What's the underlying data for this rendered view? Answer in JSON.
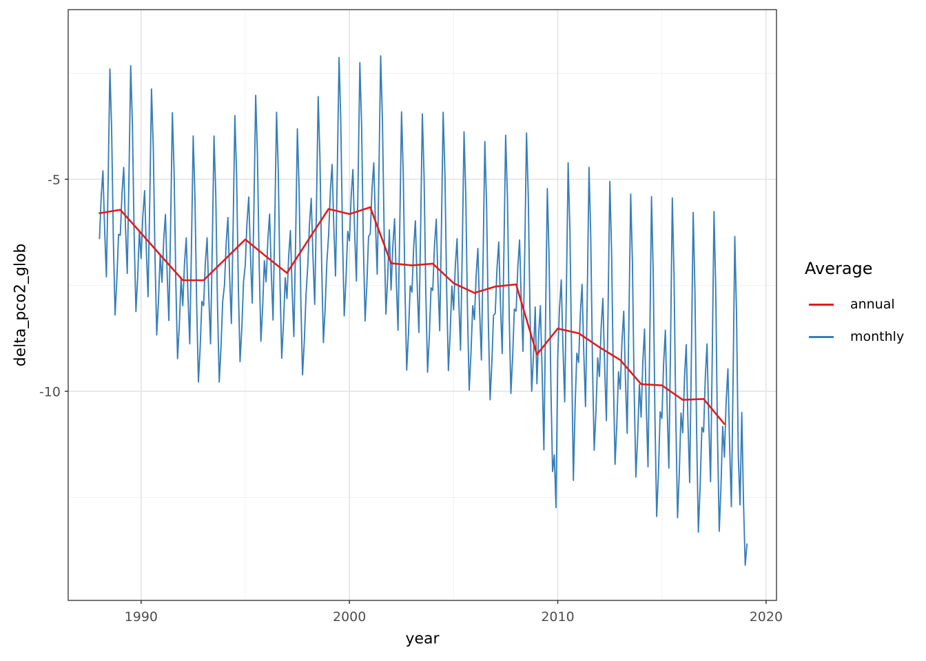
{
  "axes": {
    "x_title": "year",
    "y_title": "delta_pco2_glob"
  },
  "chart_data": {
    "type": "line",
    "title": "",
    "xlabel": "year",
    "ylabel": "delta_pco2_glob",
    "x_domain": [
      1986.5,
      2020.5
    ],
    "y_domain": [
      -14.93,
      -1.0
    ],
    "grid": "major+minor",
    "x_ticks": {
      "major": [
        1990,
        2000,
        2010,
        2020
      ],
      "labels": [
        "1990",
        "2000",
        "2010",
        "2020"
      ],
      "minor": [
        1995,
        2005,
        2015
      ]
    },
    "y_ticks": {
      "major": [
        -5,
        -10
      ],
      "labels": [
        "-5",
        "-10"
      ],
      "minor": [
        -2.5,
        -7.5,
        -12.5
      ]
    },
    "legend": {
      "title": "Average",
      "position": "right",
      "entries": [
        {
          "label": "annual",
          "color": "#E41A1C"
        },
        {
          "label": "monthly",
          "color": "#377EB8"
        }
      ]
    },
    "series": [
      {
        "name": "annual",
        "color": "#E41A1C",
        "stroke_width": 2.6,
        "x_start": 1988,
        "x_step": 1,
        "values": [
          -5.8,
          -5.72,
          -6.27,
          -6.83,
          -7.38,
          -7.38,
          -6.9,
          -6.42,
          -6.82,
          -7.21,
          -6.45,
          -5.7,
          -5.82,
          -5.66,
          -6.98,
          -7.03,
          -6.99,
          -7.45,
          -7.68,
          -7.53,
          -7.48,
          -9.13,
          -8.52,
          -8.63,
          -8.96,
          -9.26,
          -9.83,
          -9.86,
          -10.2,
          -10.18,
          -10.77
        ]
      },
      {
        "name": "monthly",
        "color": "#377EB8",
        "stroke_width": 1.9,
        "x_start": 1988,
        "x_step": 0.0833333,
        "values": [
          -6.4,
          -5.4,
          -4.8,
          -6.2,
          -7.3,
          -5.0,
          -2.4,
          -3.8,
          -6.4,
          -8.2,
          -7.4,
          -6.3,
          -6.32,
          -5.32,
          -4.72,
          -6.12,
          -7.22,
          -4.92,
          -2.32,
          -3.72,
          -6.32,
          -8.12,
          -7.32,
          -6.22,
          -6.87,
          -5.87,
          -5.27,
          -6.67,
          -7.77,
          -5.47,
          -2.87,
          -4.27,
          -6.87,
          -8.67,
          -7.87,
          -6.77,
          -7.43,
          -6.43,
          -5.83,
          -7.23,
          -8.33,
          -6.03,
          -3.43,
          -4.83,
          -7.43,
          -9.23,
          -8.43,
          -7.33,
          -7.98,
          -6.98,
          -6.38,
          -7.78,
          -8.88,
          -6.58,
          -3.98,
          -5.38,
          -7.98,
          -9.78,
          -8.98,
          -7.88,
          -7.98,
          -6.98,
          -6.38,
          -7.78,
          -8.88,
          -6.58,
          -3.98,
          -5.38,
          -7.98,
          -9.78,
          -8.98,
          -7.88,
          -7.5,
          -6.5,
          -5.9,
          -7.3,
          -8.4,
          -6.1,
          -3.5,
          -4.9,
          -7.5,
          -9.3,
          -8.5,
          -7.4,
          -7.02,
          -6.02,
          -5.42,
          -6.82,
          -7.92,
          -5.62,
          -3.02,
          -4.42,
          -7.02,
          -8.82,
          -8.02,
          -6.92,
          -7.42,
          -6.42,
          -5.82,
          -7.22,
          -8.32,
          -6.02,
          -3.42,
          -4.82,
          -7.42,
          -9.22,
          -8.42,
          -7.32,
          -7.81,
          -6.81,
          -6.21,
          -7.61,
          -8.71,
          -6.41,
          -3.81,
          -5.21,
          -7.81,
          -9.61,
          -8.81,
          -7.71,
          -7.05,
          -6.05,
          -5.45,
          -6.85,
          -7.95,
          -5.65,
          -3.05,
          -4.45,
          -7.05,
          -8.85,
          -8.05,
          -6.95,
          -6.33,
          -5.28,
          -4.65,
          -6.12,
          -7.28,
          -4.86,
          -2.13,
          -3.6,
          -6.33,
          -8.22,
          -7.38,
          -6.23,
          -6.45,
          -5.4,
          -4.77,
          -6.24,
          -7.4,
          -4.98,
          -2.25,
          -3.72,
          -6.45,
          -8.34,
          -7.5,
          -6.35,
          -6.29,
          -5.24,
          -4.61,
          -6.08,
          -7.24,
          -4.82,
          -2.09,
          -3.56,
          -6.29,
          -8.18,
          -7.34,
          -6.19,
          -7.61,
          -6.56,
          -5.93,
          -7.4,
          -8.56,
          -6.14,
          -3.41,
          -4.88,
          -7.61,
          -9.5,
          -8.66,
          -7.51,
          -7.66,
          -6.61,
          -5.98,
          -7.45,
          -8.61,
          -6.19,
          -3.46,
          -4.93,
          -7.66,
          -9.55,
          -8.71,
          -7.56,
          -7.62,
          -6.57,
          -5.94,
          -7.41,
          -8.57,
          -6.15,
          -3.42,
          -4.89,
          -7.62,
          -9.51,
          -8.67,
          -7.52,
          -8.08,
          -7.03,
          -6.4,
          -7.87,
          -9.03,
          -6.61,
          -3.88,
          -5.35,
          -8.08,
          -9.97,
          -9.13,
          -7.98,
          -8.31,
          -7.26,
          -6.63,
          -8.1,
          -9.26,
          -6.84,
          -4.11,
          -5.58,
          -8.31,
          -10.2,
          -9.36,
          -8.21,
          -8.16,
          -7.11,
          -6.48,
          -7.95,
          -9.11,
          -6.69,
          -3.96,
          -5.43,
          -8.16,
          -10.05,
          -9.21,
          -8.06,
          -8.11,
          -7.06,
          -6.43,
          -7.9,
          -9.06,
          -6.64,
          -3.91,
          -5.38,
          -8.11,
          -10.0,
          -9.16,
          -8.01,
          -9.82,
          -8.67,
          -7.98,
          -9.59,
          -11.38,
          -8.21,
          -5.22,
          -6.83,
          -9.82,
          -11.89,
          -11.5,
          -12.74,
          -9.21,
          -8.06,
          -7.37,
          -8.98,
          -10.25,
          -7.6,
          -4.61,
          -6.22,
          -9.21,
          -12.1,
          -10.36,
          -9.1,
          -9.32,
          -8.17,
          -7.48,
          -9.09,
          -10.36,
          -7.71,
          -4.72,
          -6.33,
          -9.32,
          -11.39,
          -10.47,
          -9.21,
          -9.65,
          -8.5,
          -7.81,
          -9.42,
          -10.69,
          -8.04,
          -5.05,
          -6.66,
          -9.65,
          -11.72,
          -10.8,
          -9.54,
          -9.95,
          -8.8,
          -8.11,
          -9.72,
          -10.99,
          -8.34,
          -5.35,
          -6.96,
          -9.95,
          -12.02,
          -11.1,
          -9.84,
          -10.61,
          -9.31,
          -8.53,
          -10.35,
          -11.78,
          -8.79,
          -5.41,
          -7.23,
          -10.61,
          -12.95,
          -11.91,
          -10.48,
          -10.64,
          -9.34,
          -8.56,
          -10.38,
          -11.81,
          -8.82,
          -5.44,
          -7.26,
          -10.64,
          -12.98,
          -11.94,
          -10.51,
          -10.98,
          -9.68,
          -8.9,
          -10.72,
          -12.15,
          -9.16,
          -5.78,
          -7.6,
          -10.98,
          -13.32,
          -12.28,
          -10.85,
          -10.96,
          -9.66,
          -8.88,
          -10.7,
          -12.13,
          -9.14,
          -5.76,
          -7.58,
          -10.96,
          -13.3,
          -12.26,
          -10.83,
          -11.55,
          -10.25,
          -9.47,
          -11.29,
          -12.72,
          -9.73,
          -6.35,
          -8.17,
          -11.55,
          -12.68,
          -10.5,
          -12.6,
          -14.1,
          -13.6
        ]
      }
    ],
    "style": {
      "panel_background": "#FFFFFF",
      "panel_border": "#3C3C3C",
      "grid_major_color": "#E3E3E3",
      "grid_minor_color": "#F0F0F0",
      "tick_color": "#333333",
      "tick_label_color": "#4D4D4D"
    }
  }
}
